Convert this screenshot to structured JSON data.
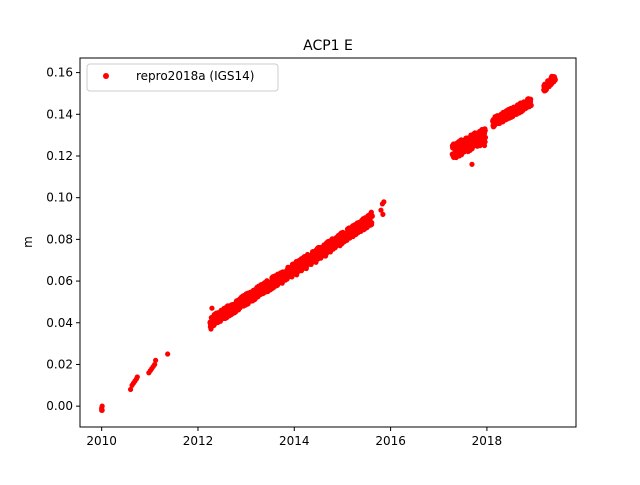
{
  "chart_data": {
    "type": "scatter",
    "title": "ACP1 E",
    "xlabel": "",
    "ylabel": "m",
    "xlim": [
      2009.55,
      2019.85
    ],
    "ylim": [
      -0.01,
      0.167
    ],
    "xticks": [
      2010,
      2012,
      2014,
      2016,
      2018
    ],
    "xtick_labels": [
      "2010",
      "2012",
      "2014",
      "2016",
      "2018"
    ],
    "yticks": [
      0.0,
      0.02,
      0.04,
      0.06,
      0.08,
      0.1,
      0.12,
      0.14,
      0.16
    ],
    "ytick_labels": [
      "0.00",
      "0.02",
      "0.04",
      "0.06",
      "0.08",
      "0.10",
      "0.12",
      "0.14",
      "0.16"
    ],
    "grid": false,
    "legend": {
      "placement": "top-left",
      "entries": [
        "repro2018a (IGS14)"
      ]
    },
    "series": [
      {
        "name": "repro2018a (IGS14)",
        "color": "#ff0000",
        "marker": "circle",
        "points": [
          [
            2010.0,
            -0.002
          ],
          [
            2010.0,
            -0.001
          ],
          [
            2010.01,
            0.0
          ],
          [
            2010.01,
            -0.002
          ],
          [
            2010.6,
            0.008
          ],
          [
            2010.63,
            0.01
          ],
          [
            2010.66,
            0.011
          ],
          [
            2010.69,
            0.012
          ],
          [
            2010.72,
            0.013
          ],
          [
            2010.74,
            0.014
          ],
          [
            2010.98,
            0.016
          ],
          [
            2011.01,
            0.017
          ],
          [
            2011.04,
            0.018
          ],
          [
            2011.07,
            0.019
          ],
          [
            2011.1,
            0.02
          ],
          [
            2011.12,
            0.022
          ],
          [
            2011.37,
            0.025
          ],
          [
            2012.27,
            0.037
          ],
          [
            2012.29,
            0.047
          ],
          [
            2012.35,
            0.04
          ],
          [
            2012.45,
            0.042
          ],
          [
            2012.55,
            0.044
          ],
          [
            2012.65,
            0.045
          ],
          [
            2012.75,
            0.046
          ],
          [
            2012.85,
            0.048
          ],
          [
            2012.95,
            0.049
          ],
          [
            2013.05,
            0.051
          ],
          [
            2013.15,
            0.052
          ],
          [
            2013.25,
            0.053
          ],
          [
            2013.35,
            0.054
          ],
          [
            2013.45,
            0.055
          ],
          [
            2013.55,
            0.057
          ],
          [
            2013.65,
            0.058
          ],
          [
            2013.75,
            0.059
          ],
          [
            2013.85,
            0.061
          ],
          [
            2013.95,
            0.062
          ],
          [
            2014.05,
            0.063
          ],
          [
            2014.15,
            0.065
          ],
          [
            2014.25,
            0.066
          ],
          [
            2014.35,
            0.068
          ],
          [
            2014.45,
            0.069
          ],
          [
            2014.55,
            0.071
          ],
          [
            2014.65,
            0.072
          ],
          [
            2014.75,
            0.074
          ],
          [
            2014.85,
            0.076
          ],
          [
            2014.95,
            0.077
          ],
          [
            2015.05,
            0.08
          ],
          [
            2015.15,
            0.082
          ],
          [
            2015.25,
            0.084
          ],
          [
            2015.35,
            0.086
          ],
          [
            2015.45,
            0.088
          ],
          [
            2015.55,
            0.09
          ],
          [
            2015.6,
            0.093
          ],
          [
            2015.8,
            0.094
          ],
          [
            2015.83,
            0.097
          ],
          [
            2015.86,
            0.098
          ],
          [
            2015.84,
            0.092
          ],
          [
            2017.3,
            0.12
          ],
          [
            2017.35,
            0.122
          ],
          [
            2017.4,
            0.124
          ],
          [
            2017.45,
            0.127
          ],
          [
            2017.5,
            0.126
          ],
          [
            2017.55,
            0.125
          ],
          [
            2017.6,
            0.124
          ],
          [
            2017.65,
            0.127
          ],
          [
            2017.69,
            0.116
          ],
          [
            2017.75,
            0.128
          ],
          [
            2017.8,
            0.129
          ],
          [
            2017.85,
            0.13
          ],
          [
            2017.9,
            0.131
          ],
          [
            2017.95,
            0.125
          ],
          [
            2018.15,
            0.135
          ],
          [
            2018.25,
            0.137
          ],
          [
            2018.35,
            0.138
          ],
          [
            2018.45,
            0.14
          ],
          [
            2018.55,
            0.142
          ],
          [
            2018.65,
            0.143
          ],
          [
            2018.75,
            0.144
          ],
          [
            2018.85,
            0.145
          ],
          [
            2018.9,
            0.147
          ],
          [
            2019.2,
            0.152
          ],
          [
            2019.25,
            0.154
          ],
          [
            2019.3,
            0.156
          ],
          [
            2019.35,
            0.157
          ],
          [
            2019.4,
            0.158
          ]
        ],
        "segments": [
          {
            "x": [
              2012.25,
              2015.62
            ],
            "y": [
              0.04,
              0.09
            ],
            "spread": 0.0055
          },
          {
            "x": [
              2017.28,
              2017.97
            ],
            "y": [
              0.122,
              0.13
            ],
            "spread": 0.0075
          },
          {
            "x": [
              2018.12,
              2018.92
            ],
            "y": [
              0.136,
              0.146
            ],
            "spread": 0.0045
          },
          {
            "x": [
              2019.18,
              2019.42
            ],
            "y": [
              0.152,
              0.158
            ],
            "spread": 0.004
          }
        ]
      }
    ]
  }
}
